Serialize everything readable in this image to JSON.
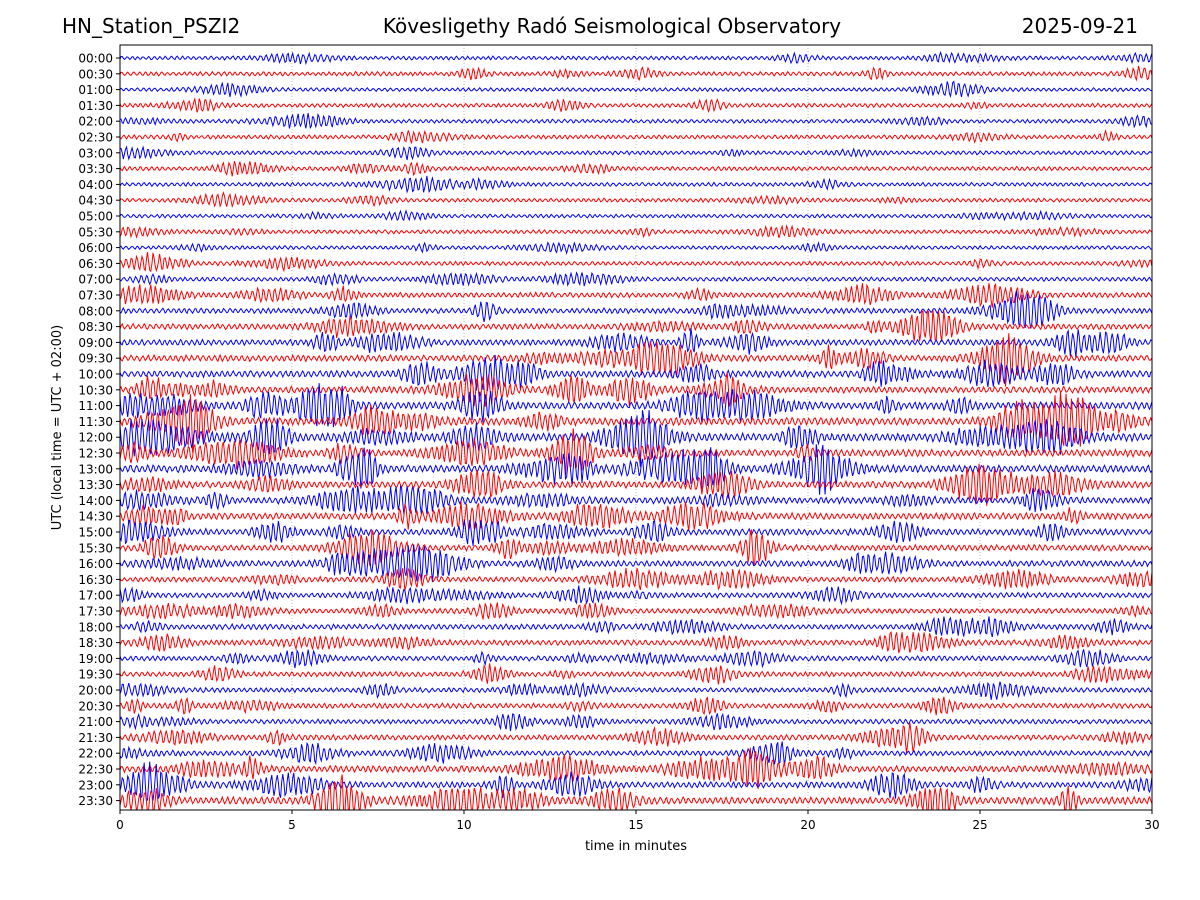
{
  "header": {
    "station": "HN_Station_PSZI2",
    "observatory": "Kövesligethy Radó Seismological Observatory",
    "date": "2025-09-21"
  },
  "chart_data": {
    "type": "line",
    "title": "Kövesligethy Radó Seismological Observatory",
    "xlabel": "time in minutes",
    "ylabel": "UTC (local time = UTC + 02:00)",
    "xlim": [
      0,
      30
    ],
    "x_ticks": [
      "0",
      "5",
      "10",
      "15",
      "20",
      "25",
      "30"
    ],
    "grid": "vertical dotted at x = 5, 10, 15, 20, 25",
    "row_labels": [
      "00:00",
      "00:30",
      "01:00",
      "01:30",
      "02:00",
      "02:30",
      "03:00",
      "03:30",
      "04:00",
      "04:30",
      "05:00",
      "05:30",
      "06:00",
      "06:30",
      "07:00",
      "07:30",
      "08:00",
      "08:30",
      "09:00",
      "09:30",
      "10:00",
      "10:30",
      "11:00",
      "11:30",
      "12:00",
      "12:30",
      "13:00",
      "13:30",
      "14:00",
      "14:30",
      "15:00",
      "15:30",
      "16:00",
      "16:30",
      "17:00",
      "17:30",
      "18:00",
      "18:30",
      "19:00",
      "19:30",
      "20:00",
      "20:30",
      "21:00",
      "21:30",
      "22:00",
      "22:30",
      "23:00",
      "23:30"
    ],
    "trace_colors": [
      "#0000ff",
      "#ff0000"
    ],
    "relative_activity": [
      0.25,
      0.3,
      0.22,
      0.28,
      0.25,
      0.28,
      0.25,
      0.3,
      0.25,
      0.25,
      0.22,
      0.25,
      0.22,
      0.28,
      0.3,
      0.45,
      0.5,
      0.55,
      0.6,
      0.65,
      0.7,
      0.7,
      0.8,
      0.85,
      0.9,
      0.75,
      0.8,
      0.7,
      0.65,
      0.7,
      0.65,
      0.6,
      0.6,
      0.5,
      0.45,
      0.45,
      0.5,
      0.5,
      0.45,
      0.45,
      0.4,
      0.45,
      0.4,
      0.5,
      0.45,
      0.7,
      0.6,
      0.8
    ]
  }
}
